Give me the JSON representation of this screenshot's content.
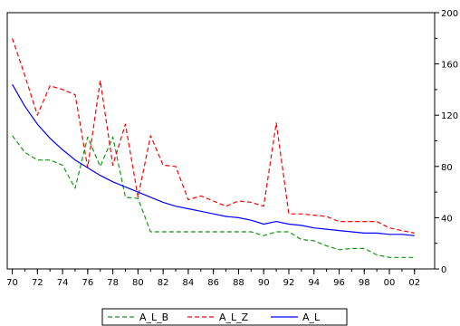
{
  "chart_data": {
    "type": "line",
    "title": "",
    "xlabel": "",
    "ylabel": "",
    "x": [
      1970,
      1971,
      1972,
      1973,
      1974,
      1975,
      1976,
      1977,
      1978,
      1979,
      1980,
      1981,
      1982,
      1983,
      1984,
      1985,
      1986,
      1987,
      1988,
      1989,
      1990,
      1991,
      1992,
      1993,
      1994,
      1995,
      1996,
      1997,
      1998,
      1999,
      2000,
      2001,
      2002
    ],
    "x_ticks": [
      1970,
      1972,
      1974,
      1976,
      1978,
      1980,
      1982,
      1984,
      1986,
      1988,
      1990,
      1992,
      1994,
      1996,
      1998,
      2000,
      2002
    ],
    "x_tick_labels": [
      "70",
      "72",
      "74",
      "76",
      "78",
      "80",
      "82",
      "84",
      "86",
      "88",
      "90",
      "92",
      "94",
      "96",
      "98",
      "00",
      "02"
    ],
    "xlim": [
      1969.6,
      2003.6
    ],
    "ylim": [
      0,
      200
    ],
    "y_ticks": [
      0,
      40,
      80,
      120,
      160,
      200
    ],
    "y_tick_labels": [
      "0",
      "40",
      "80",
      "120",
      "160",
      "200"
    ],
    "grid": false,
    "legend_position": "bottom",
    "series": [
      {
        "name": "A_L_B",
        "color": "#119911",
        "dash": "dashed",
        "values": [
          104,
          91,
          85,
          85,
          81,
          63,
          103,
          80,
          103,
          56,
          55,
          29,
          29,
          29,
          29,
          29,
          29,
          29,
          29,
          29,
          26,
          29,
          29,
          23,
          22,
          18,
          15,
          16,
          16,
          11,
          9,
          9,
          9
        ]
      },
      {
        "name": "A_L_Z",
        "color": "#ff0000",
        "dash": "dashed",
        "values": [
          180,
          151,
          120,
          143,
          140,
          136,
          79,
          147,
          81,
          113,
          56,
          104,
          81,
          80,
          54,
          57,
          53,
          49,
          53,
          52,
          49,
          114,
          43,
          43,
          42,
          41,
          37,
          37,
          37,
          37,
          32,
          30,
          28
        ]
      },
      {
        "name": "A_L",
        "color": "#0000ff",
        "dash": "solid",
        "values": [
          144,
          127,
          113,
          102,
          93,
          85,
          79,
          73,
          68,
          64,
          60,
          56,
          52,
          49,
          47,
          45,
          43,
          41,
          40,
          38,
          35,
          37,
          35,
          34,
          32,
          31,
          30,
          29,
          28,
          28,
          27,
          27,
          26
        ]
      }
    ]
  }
}
